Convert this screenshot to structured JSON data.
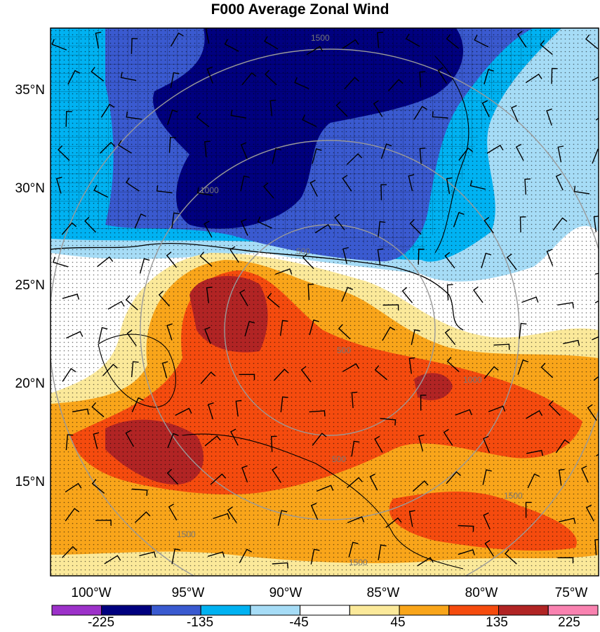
{
  "title": "F000 Average Zonal Wind",
  "lat_labels": [
    "35°N",
    "30°N",
    "25°N",
    "20°N",
    "15°N"
  ],
  "lon_labels": [
    "100°W",
    "95°W",
    "90°W",
    "85°W",
    "80°W",
    "75°W"
  ],
  "range_ring_labels": [
    "1500",
    "1500",
    "1000",
    "1000",
    "500",
    "500",
    "500",
    "1500",
    "1500"
  ],
  "colorbar": {
    "labels": [
      "-225",
      "-135",
      "-45",
      "45",
      "135",
      "225"
    ],
    "colors": [
      "#9c31c9",
      "#00007f",
      "#3a5ad0",
      "#00b2f2",
      "#a6dcf6",
      "#ffffff",
      "#fbe99a",
      "#f9a51a",
      "#f54b0e",
      "#b12424",
      "#f982b0"
    ]
  },
  "colors": {
    "strong_negative": "#00007f",
    "negative": "#3a5ad0",
    "weak_negative": "#00b2f2",
    "slight_negative": "#a6dcf6",
    "neutral": "#ffffff",
    "slight_positive": "#fbe99a",
    "weak_positive": "#f9a51a",
    "positive": "#f54b0e",
    "strong_positive": "#b12424"
  }
}
